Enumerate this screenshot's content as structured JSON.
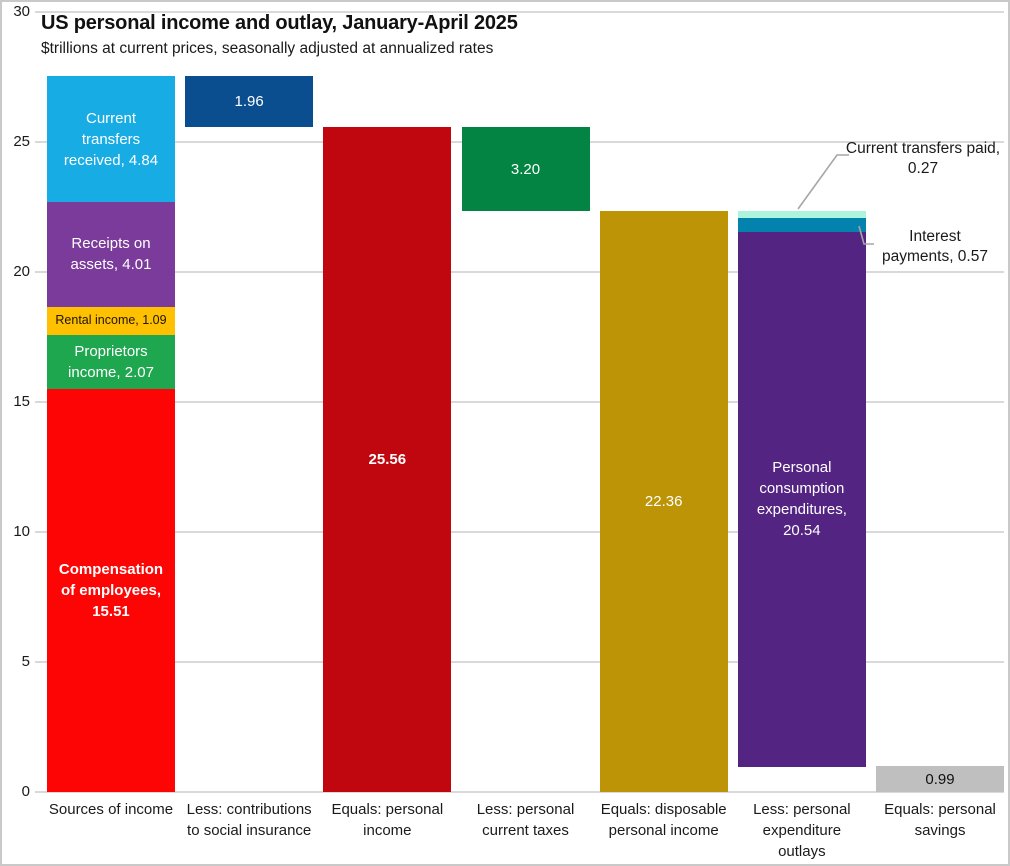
{
  "header": {
    "title": "US personal income and outlay, January-April 2025",
    "subtitle": "$trillions at current prices, seasonally adjusted at annualized rates"
  },
  "chart_data": {
    "type": "bar",
    "variant": "waterfall-stacked-columns",
    "title": "US personal income and outlay, January-April 2025",
    "subtitle": "$trillions at current prices, seasonally adjusted at annualized rates",
    "xlabel": "",
    "ylabel": "",
    "ylim": [
      0,
      30
    ],
    "yticks": [
      0,
      5,
      10,
      15,
      20,
      25,
      30
    ],
    "grid": true,
    "gridline_color": "#D9D9D9",
    "bars": [
      {
        "category": "Sources of income",
        "category_lines": [
          "Sources of income"
        ],
        "base": 0,
        "segments": [
          {
            "label": "Compensation of employees",
            "value": 15.51,
            "color": "#FE0505",
            "text_color": "#FFFFFF",
            "bold": true,
            "label_lines": [
              "Compensation",
              "of employees,",
              "15.51"
            ]
          },
          {
            "label": "Proprietors income",
            "value": 2.07,
            "color": "#1FA750",
            "text_color": "#FFFFFF",
            "bold": false,
            "label_lines": [
              "Proprietors",
              "income, 2.07"
            ]
          },
          {
            "label": "Rental income",
            "value": 1.09,
            "color": "#FFC000",
            "text_color": "#1d1505",
            "bold": false,
            "font_size": 12.5,
            "label_lines": [
              "Rental income, 1.09"
            ]
          },
          {
            "label": "Receipts on assets",
            "value": 4.01,
            "color": "#7A3B9B",
            "text_color": "#FFFFFF",
            "bold": false,
            "label_lines": [
              "Receipts on",
              "assets, 4.01"
            ]
          },
          {
            "label": "Current transfers received",
            "value": 4.84,
            "color": "#17ACE4",
            "text_color": "#FFFFFF",
            "bold": false,
            "label_lines": [
              "Current",
              "transfers",
              "received, 4.84"
            ]
          }
        ]
      },
      {
        "category": "Less: contributions to social insurance",
        "category_lines": [
          "Less: contributions",
          "to social insurance"
        ],
        "base": 25.56,
        "segments": [
          {
            "label": "Contributions to social insurance",
            "value": 1.96,
            "color": "#0B4E8F",
            "text_color": "#FFFFFF",
            "bold": false,
            "label_lines": [
              "1.96"
            ]
          }
        ]
      },
      {
        "category": "Equals: personal income",
        "category_lines": [
          "Equals: personal",
          "income"
        ],
        "base": 0,
        "segments": [
          {
            "label": "Personal income",
            "value": 25.56,
            "color": "#C00710",
            "text_color": "#FFFFFF",
            "bold": true,
            "label_lines": [
              "25.56"
            ]
          }
        ]
      },
      {
        "category": "Less: personal current taxes",
        "category_lines": [
          "Less: personal",
          "current taxes"
        ],
        "base": 22.36,
        "segments": [
          {
            "label": "Personal current taxes",
            "value": 3.2,
            "color": "#038442",
            "text_color": "#FFFFFF",
            "bold": false,
            "label_lines": [
              "3.20"
            ]
          }
        ]
      },
      {
        "category": "Equals: disposable personal income",
        "category_lines": [
          "Equals: disposable",
          "personal income"
        ],
        "base": 0,
        "segments": [
          {
            "label": "Disposable personal income",
            "value": 22.36,
            "color": "#BD9406",
            "text_color": "#FFFFFF",
            "bold": false,
            "label_lines": [
              "22.36"
            ]
          }
        ]
      },
      {
        "category": "Less: personal expenditure outlays",
        "category_lines": [
          "Less: personal",
          "expenditure",
          "outlays"
        ],
        "base": 0.98,
        "segments": [
          {
            "label": "Personal consumption expenditures",
            "value": 20.54,
            "color": "#542482",
            "text_color": "#FFFFFF",
            "bold": false,
            "label_lines": [
              "Personal",
              "consumption",
              "expenditures,",
              "20.54"
            ]
          },
          {
            "label": "Interest payments",
            "value": 0.57,
            "color": "#0382AE",
            "text_color": "#FFFFFF",
            "bold": false,
            "label_lines": []
          },
          {
            "label": "Current transfers paid",
            "value": 0.27,
            "color": "#ACF5DC",
            "text_color": "#000000",
            "bold": false,
            "label_lines": []
          }
        ]
      },
      {
        "category": "Equals: personal savings",
        "category_lines": [
          "Equals: personal",
          "savings"
        ],
        "base": 0,
        "segments": [
          {
            "label": "Personal savings",
            "value": 0.99,
            "color": "#BFBFBF",
            "text_color": "#111111",
            "bold": false,
            "label_lines": [
              "0.99"
            ]
          }
        ]
      }
    ],
    "annotations": [
      {
        "id": "current-transfers-paid",
        "lines": [
          "Current transfers paid,",
          "0.27"
        ]
      },
      {
        "id": "interest-payments",
        "lines": [
          "Interest",
          "payments, 0.57"
        ]
      }
    ],
    "leader_line_color": "#A6A6A6"
  }
}
